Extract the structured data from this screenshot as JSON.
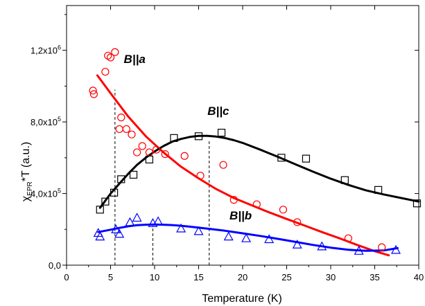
{
  "chart_data": {
    "type": "scatter",
    "title": "",
    "xlabel": "Temperature (K)",
    "ylabel_main": "χ",
    "ylabel_sub": "EPR",
    "ylabel_rest": "*T (a.u.)",
    "xlim": [
      0,
      40
    ],
    "ylim": [
      0,
      1450000
    ],
    "xticks": [
      0,
      5,
      10,
      15,
      20,
      25,
      30,
      35,
      40
    ],
    "xtick_labels": [
      "0",
      "5",
      "10",
      "15",
      "20",
      "25",
      "30",
      "35",
      "40"
    ],
    "yticks": [
      0,
      400000,
      800000,
      1200000
    ],
    "ytick_labels": [
      {
        "mantissa": "0,0",
        "exp": ""
      },
      {
        "mantissa": "4,0x10",
        "exp": "5"
      },
      {
        "mantissa": "8,0x10",
        "exp": "5"
      },
      {
        "mantissa": "1,2x10",
        "exp": "6"
      }
    ],
    "grid": false,
    "series": [
      {
        "name": "B||a",
        "color": "#ff0000",
        "marker": "circle",
        "label_at": [
          6.5,
          1130000
        ],
        "points": [
          [
            3.0,
            975000
          ],
          [
            3.1,
            955000
          ],
          [
            4.4,
            1080000
          ],
          [
            4.7,
            1170000
          ],
          [
            5.0,
            1160000
          ],
          [
            5.5,
            1190000
          ],
          [
            6.0,
            760000
          ],
          [
            6.2,
            825000
          ],
          [
            6.8,
            760000
          ],
          [
            7.4,
            730000
          ],
          [
            8.0,
            630000
          ],
          [
            8.6,
            665000
          ],
          [
            9.4,
            630000
          ],
          [
            10.2,
            645000
          ],
          [
            11.2,
            620000
          ],
          [
            13.4,
            610000
          ],
          [
            15.2,
            500000
          ],
          [
            17.8,
            560000
          ],
          [
            19.0,
            365000
          ],
          [
            21.6,
            340000
          ],
          [
            24.6,
            310000
          ],
          [
            26.2,
            240000
          ],
          [
            32.0,
            150000
          ],
          [
            35.8,
            100000
          ]
        ],
        "fit": [
          [
            3.5,
            1060000
          ],
          [
            5.0,
            960000
          ],
          [
            7.0,
            830000
          ],
          [
            9.0,
            720000
          ],
          [
            11.0,
            630000
          ],
          [
            13.0,
            550000
          ],
          [
            15.0,
            485000
          ],
          [
            17.0,
            425000
          ],
          [
            19.0,
            375000
          ],
          [
            21.0,
            335000
          ],
          [
            23.0,
            295000
          ],
          [
            25.0,
            258000
          ],
          [
            27.0,
            222000
          ],
          [
            29.0,
            185000
          ],
          [
            31.0,
            150000
          ],
          [
            33.0,
            113000
          ],
          [
            35.0,
            78000
          ],
          [
            36.6,
            55000
          ]
        ]
      },
      {
        "name": "B||c",
        "color": "#000000",
        "marker": "square",
        "label_at": [
          16.0,
          840000
        ],
        "points": [
          [
            3.8,
            310000
          ],
          [
            4.4,
            355000
          ],
          [
            5.4,
            405000
          ],
          [
            6.2,
            480000
          ],
          [
            7.6,
            505000
          ],
          [
            9.4,
            590000
          ],
          [
            12.2,
            710000
          ],
          [
            15.0,
            720000
          ],
          [
            17.6,
            740000
          ],
          [
            24.4,
            600000
          ],
          [
            27.2,
            595000
          ],
          [
            31.6,
            475000
          ],
          [
            35.4,
            420000
          ],
          [
            39.8,
            345000
          ]
        ],
        "fit": [
          [
            3.8,
            320000
          ],
          [
            5.0,
            400000
          ],
          [
            6.0,
            455000
          ],
          [
            7.0,
            510000
          ],
          [
            8.0,
            560000
          ],
          [
            9.0,
            600000
          ],
          [
            10.0,
            635000
          ],
          [
            11.0,
            665000
          ],
          [
            12.0,
            690000
          ],
          [
            13.0,
            705000
          ],
          [
            14.0,
            716000
          ],
          [
            15.0,
            722000
          ],
          [
            16.0,
            722000
          ],
          [
            17.0,
            718000
          ],
          [
            18.0,
            710000
          ],
          [
            19.0,
            698000
          ],
          [
            20.0,
            683000
          ],
          [
            22.0,
            645000
          ],
          [
            24.0,
            605000
          ],
          [
            26.0,
            563000
          ],
          [
            28.0,
            522000
          ],
          [
            30.0,
            483000
          ],
          [
            32.0,
            448000
          ],
          [
            34.0,
            418000
          ],
          [
            36.0,
            395000
          ],
          [
            38.0,
            375000
          ],
          [
            40.0,
            355000
          ]
        ]
      },
      {
        "name": "B||b",
        "color": "#0000ff",
        "marker": "triangle",
        "label_at": [
          18.5,
          255000
        ],
        "points": [
          [
            3.6,
            180000
          ],
          [
            3.8,
            160000
          ],
          [
            5.6,
            200000
          ],
          [
            6.0,
            175000
          ],
          [
            7.2,
            240000
          ],
          [
            8.0,
            265000
          ],
          [
            9.8,
            235000
          ],
          [
            10.4,
            245000
          ],
          [
            13.0,
            205000
          ],
          [
            15.0,
            190000
          ],
          [
            18.4,
            160000
          ],
          [
            20.4,
            150000
          ],
          [
            23.0,
            145000
          ],
          [
            26.2,
            115000
          ],
          [
            29.0,
            105000
          ],
          [
            33.2,
            80000
          ],
          [
            37.4,
            85000
          ]
        ],
        "fit": [
          [
            3.6,
            185000
          ],
          [
            5.0,
            198000
          ],
          [
            6.0,
            208000
          ],
          [
            7.0,
            217000
          ],
          [
            8.0,
            223000
          ],
          [
            9.0,
            226000
          ],
          [
            10.0,
            227000
          ],
          [
            11.0,
            226000
          ],
          [
            12.0,
            224000
          ],
          [
            13.0,
            220000
          ],
          [
            14.0,
            215000
          ],
          [
            16.0,
            204000
          ],
          [
            18.0,
            192000
          ],
          [
            20.0,
            178000
          ],
          [
            22.0,
            163000
          ],
          [
            24.0,
            147000
          ],
          [
            26.0,
            130000
          ],
          [
            28.0,
            113000
          ],
          [
            30.0,
            98000
          ],
          [
            32.0,
            86000
          ],
          [
            34.0,
            80000
          ],
          [
            36.0,
            82000
          ],
          [
            37.6,
            95000
          ]
        ]
      }
    ],
    "reference_lines": [
      {
        "x": 5.5,
        "y_top": 980000
      },
      {
        "x": 9.8,
        "y_top": 220000
      },
      {
        "x": 16.2,
        "y_top": 700000
      }
    ]
  }
}
